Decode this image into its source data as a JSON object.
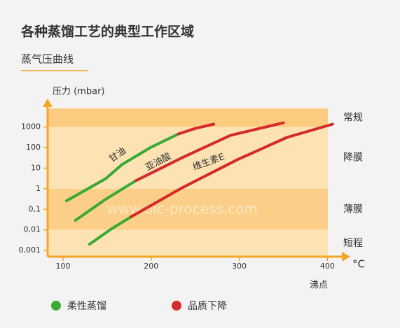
{
  "chart_data": {
    "type": "line",
    "title": "各种蒸馏工艺的典型工作区域",
    "subtitle": "蒸气压曲线",
    "y_label": "压力 (mbar)",
    "x_label": "沸点",
    "x_unit": "°C",
    "watermark": "www.uic-process.com",
    "ylog": true,
    "xlim": [
      82.5,
      418
    ],
    "ylim": [
      0.0005,
      8000
    ],
    "xticks": [
      100,
      200,
      300,
      400
    ],
    "yticks": [
      {
        "value": 0.001,
        "label": "0,001"
      },
      {
        "value": 0.01,
        "label": "0,01"
      },
      {
        "value": 0.1,
        "label": "0,1"
      },
      1,
      10,
      100,
      1000
    ],
    "regions": [
      {
        "label": "常规",
        "from": 1000,
        "to": 8000,
        "color": "#fbcb80"
      },
      {
        "label": "降膜",
        "from": 1,
        "to": 1000,
        "color": "#fde2b4"
      },
      {
        "label": "薄膜",
        "from": 0.01,
        "to": 1,
        "color": "#fbcf88"
      },
      {
        "label": "短程",
        "from": 0.0005,
        "to": 0.01,
        "color": "#fde2b4"
      }
    ],
    "legend": [
      {
        "name": "柔性蒸馏",
        "color": "#3aaa35"
      },
      {
        "name": "品质下降",
        "color": "#d42a2a"
      }
    ],
    "curves": [
      {
        "label": "甘油",
        "segments": [
          {
            "color": "#3aaa35",
            "x": [
              104,
              148,
              167,
              200,
              231
            ],
            "values": [
              0.26,
              3,
              15,
              105,
              460
            ]
          },
          {
            "color": "#d42a2a",
            "x": [
              231,
              250,
              271
            ],
            "values": [
              460,
              850,
              1380
            ]
          }
        ]
      },
      {
        "label": "亚油酸",
        "segments": [
          {
            "color": "#3aaa35",
            "x": [
              114,
              148,
              183
            ],
            "values": [
              0.029,
              0.3,
              2.5
            ]
          },
          {
            "color": "#d42a2a",
            "x": [
              183,
              235,
              290,
              350
            ],
            "values": [
              2.5,
              32,
              390,
              1600
            ]
          }
        ]
      },
      {
        "label": "维生素E",
        "segments": [
          {
            "color": "#3aaa35",
            "x": [
              130,
              154,
              177
            ],
            "values": [
              0.002,
              0.0105,
              0.043
            ]
          },
          {
            "color": "#d42a2a",
            "x": [
              177,
              235,
              298,
              354,
              406
            ],
            "values": [
              0.043,
              1.1,
              26,
              310,
              1380
            ]
          }
        ]
      }
    ]
  }
}
